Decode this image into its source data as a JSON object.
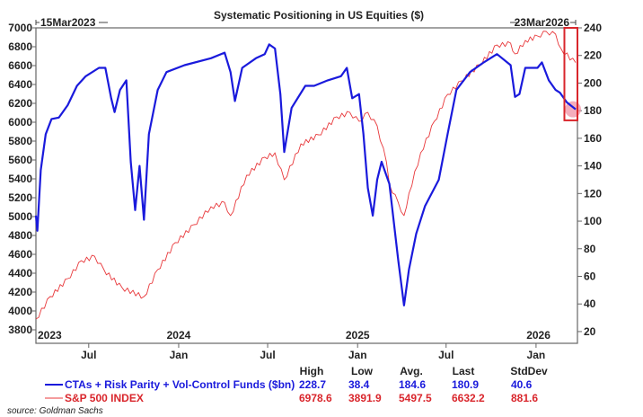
{
  "chart_data": {
    "type": "line",
    "title": "Systematic Positioning in US Equities ($)",
    "start_label": "15Mar2023",
    "end_label": "23Mar2026",
    "x_range": [
      "2023-03-15",
      "2026-03-23"
    ],
    "year_labels": [
      {
        "label": "2023",
        "date": "2023-03-15"
      },
      {
        "label": "2024",
        "date": "2024-01-01"
      },
      {
        "label": "2025",
        "date": "2025-01-01"
      },
      {
        "label": "2026",
        "date": "2026-01-01"
      }
    ],
    "month_labels": [
      {
        "label": "Jul",
        "date": "2023-07-01"
      },
      {
        "label": "Jan",
        "date": "2024-01-01"
      },
      {
        "label": "Jul",
        "date": "2024-07-01"
      },
      {
        "label": "Jan",
        "date": "2025-01-01"
      },
      {
        "label": "Jul",
        "date": "2025-07-01"
      },
      {
        "label": "Jan",
        "date": "2026-01-01"
      }
    ],
    "left_axis": {
      "ylim": [
        3657,
        7000
      ],
      "ticks": [
        7000,
        6800,
        6600,
        6400,
        6200,
        6000,
        5800,
        5600,
        5400,
        5200,
        5000,
        4800,
        4600,
        4400,
        4200,
        4000,
        3800
      ]
    },
    "right_axis": {
      "ylim": [
        11.5,
        240
      ],
      "ticks": [
        240,
        220,
        200,
        180,
        160,
        140,
        120,
        100,
        80,
        60,
        40,
        20
      ]
    },
    "grid": false,
    "legend": "bottom",
    "highlight": {
      "date_from": "2026-02-28",
      "date_to": "2026-03-23",
      "color": "#d9262c"
    },
    "series": [
      {
        "name": "CTAs + Risk Parity + Vol-Control Funds ($bn)",
        "axis": "right",
        "color": "#1a1adc",
        "stats": {
          "high": "228.7",
          "low": "38.4",
          "avg": "184.6",
          "last": "180.9",
          "stddev": "40.6"
        },
        "points": [
          [
            "2023-03-15",
            104
          ],
          [
            "2023-03-18",
            93
          ],
          [
            "2023-03-25",
            137
          ],
          [
            "2023-04-04",
            163
          ],
          [
            "2023-04-16",
            174
          ],
          [
            "2023-05-01",
            175
          ],
          [
            "2023-05-19",
            184
          ],
          [
            "2023-06-07",
            198
          ],
          [
            "2023-06-25",
            205
          ],
          [
            "2023-07-22",
            211
          ],
          [
            "2023-08-04",
            211
          ],
          [
            "2023-08-16",
            189
          ],
          [
            "2023-08-23",
            179
          ],
          [
            "2023-09-03",
            195
          ],
          [
            "2023-09-16",
            202
          ],
          [
            "2023-09-25",
            143
          ],
          [
            "2023-10-04",
            108
          ],
          [
            "2023-10-13",
            140
          ],
          [
            "2023-10-22",
            101
          ],
          [
            "2023-11-01",
            163
          ],
          [
            "2023-11-19",
            195
          ],
          [
            "2023-12-07",
            208
          ],
          [
            "2024-01-13",
            213
          ],
          [
            "2024-03-07",
            218
          ],
          [
            "2024-04-04",
            222
          ],
          [
            "2024-04-16",
            208
          ],
          [
            "2024-04-25",
            187
          ],
          [
            "2024-05-10",
            211
          ],
          [
            "2024-06-07",
            218
          ],
          [
            "2024-06-25",
            221
          ],
          [
            "2024-07-04",
            228
          ],
          [
            "2024-07-16",
            225
          ],
          [
            "2024-07-27",
            192
          ],
          [
            "2024-08-04",
            150
          ],
          [
            "2024-08-19",
            182
          ],
          [
            "2024-09-16",
            198
          ],
          [
            "2024-10-04",
            198
          ],
          [
            "2024-11-01",
            202
          ],
          [
            "2024-11-28",
            205
          ],
          [
            "2024-12-10",
            211
          ],
          [
            "2024-12-21",
            189
          ],
          [
            "2025-01-04",
            192
          ],
          [
            "2025-01-13",
            163
          ],
          [
            "2025-01-22",
            124
          ],
          [
            "2025-02-01",
            104
          ],
          [
            "2025-02-10",
            130
          ],
          [
            "2025-02-19",
            143
          ],
          [
            "2025-03-07",
            127
          ],
          [
            "2025-03-25",
            72
          ],
          [
            "2025-04-06",
            39
          ],
          [
            "2025-04-16",
            65
          ],
          [
            "2025-05-01",
            91
          ],
          [
            "2025-05-19",
            111
          ],
          [
            "2025-06-16",
            130
          ],
          [
            "2025-07-04",
            163
          ],
          [
            "2025-07-22",
            195
          ],
          [
            "2025-08-19",
            208
          ],
          [
            "2025-09-16",
            215
          ],
          [
            "2025-10-13",
            221
          ],
          [
            "2025-11-10",
            213
          ],
          [
            "2025-11-19",
            190
          ],
          [
            "2025-11-28",
            192
          ],
          [
            "2025-12-10",
            211
          ],
          [
            "2026-01-04",
            211
          ],
          [
            "2026-01-13",
            215
          ],
          [
            "2026-01-27",
            202
          ],
          [
            "2026-02-10",
            195
          ],
          [
            "2026-02-19",
            193
          ],
          [
            "2026-03-05",
            186
          ],
          [
            "2026-03-23",
            181
          ]
        ]
      },
      {
        "name": "S&P 500 INDEX",
        "axis": "left",
        "color": "#e8383b",
        "stats": {
          "high": "6978.6",
          "low": "3891.9",
          "avg": "5497.5",
          "last": "6632.2",
          "stddev": "881.6"
        },
        "points": [
          [
            "2023-03-15",
            3914
          ],
          [
            "2023-04-13",
            4152
          ],
          [
            "2023-05-19",
            4343
          ],
          [
            "2023-06-16",
            4533
          ],
          [
            "2023-07-13",
            4580
          ],
          [
            "2023-08-01",
            4438
          ],
          [
            "2023-09-07",
            4248
          ],
          [
            "2023-10-22",
            4152
          ],
          [
            "2023-11-19",
            4438
          ],
          [
            "2023-12-25",
            4724
          ],
          [
            "2024-02-01",
            4914
          ],
          [
            "2024-03-07",
            5105
          ],
          [
            "2024-04-04",
            5150
          ],
          [
            "2024-04-16",
            5010
          ],
          [
            "2024-05-19",
            5438
          ],
          [
            "2024-06-25",
            5629
          ],
          [
            "2024-07-16",
            5676
          ],
          [
            "2024-08-04",
            5390
          ],
          [
            "2024-09-07",
            5771
          ],
          [
            "2024-10-13",
            5867
          ],
          [
            "2024-11-19",
            6057
          ],
          [
            "2024-12-16",
            6105
          ],
          [
            "2025-01-04",
            6010
          ],
          [
            "2025-01-22",
            6105
          ],
          [
            "2025-02-10",
            5962
          ],
          [
            "2025-03-01",
            5580
          ],
          [
            "2025-03-07",
            5343
          ],
          [
            "2025-03-25",
            5150
          ],
          [
            "2025-04-06",
            5010
          ],
          [
            "2025-04-16",
            5248
          ],
          [
            "2025-05-10",
            5676
          ],
          [
            "2025-06-07",
            6010
          ],
          [
            "2025-07-04",
            6295
          ],
          [
            "2025-08-01",
            6438
          ],
          [
            "2025-09-07",
            6610
          ],
          [
            "2025-10-13",
            6819
          ],
          [
            "2025-11-10",
            6838
          ],
          [
            "2025-11-19",
            6724
          ],
          [
            "2025-12-10",
            6867
          ],
          [
            "2026-01-04",
            6914
          ],
          [
            "2026-01-22",
            6962
          ],
          [
            "2026-02-10",
            6933
          ],
          [
            "2026-02-22",
            6771
          ],
          [
            "2026-03-23",
            6632
          ]
        ]
      }
    ],
    "stats_headers": {
      "high": "High",
      "low": "Low",
      "avg": "Avg.",
      "last": "Last",
      "stddev": "StdDev"
    }
  },
  "source": "source: Goldman Sachs"
}
